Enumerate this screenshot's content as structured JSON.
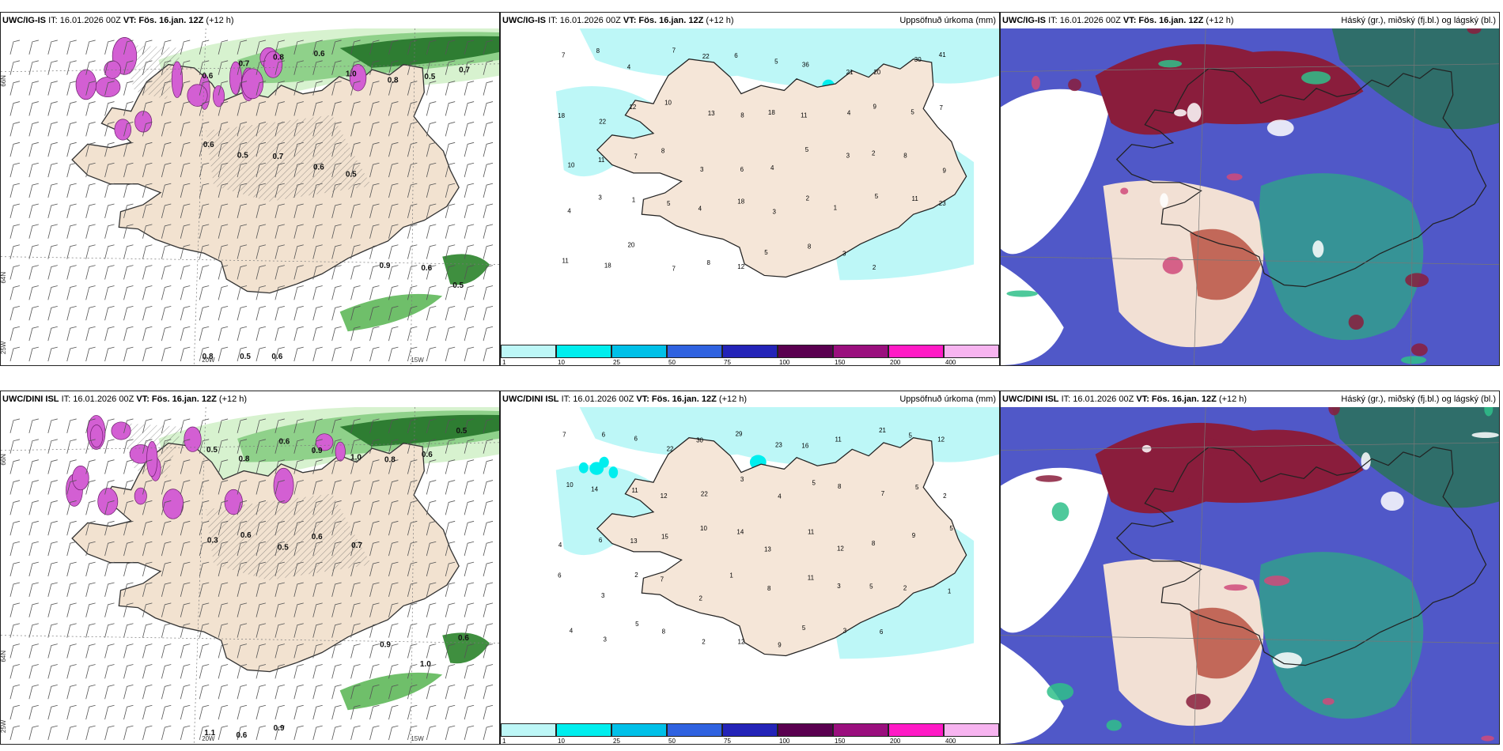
{
  "panels": {
    "p1": {
      "model": "UWC/IG-IS",
      "it": "IT: 16.01.2026 00Z",
      "vt": "VT: Fös. 16.jan. 12Z",
      "lead": "(+12 h)",
      "right": ""
    },
    "p2": {
      "model": "UWC/IG-IS",
      "it": "IT: 16.01.2026 00Z",
      "vt": "VT: Fös. 16.jan. 12Z",
      "lead": "(+12 h)",
      "right": "Uppsöfnuð úrkoma (mm)"
    },
    "p3": {
      "model": "UWC/IG-IS",
      "it": "IT: 16.01.2026 00Z",
      "vt": "VT: Fös. 16.jan. 12Z",
      "lead": "(+12 h)",
      "right": "Háský (gr.), miðský (fj.bl.) og lágský (bl.)"
    },
    "p4": {
      "model": "UWC/DINI ISL",
      "it": "IT: 16.01.2026 00Z",
      "vt": "VT: Fös. 16.jan. 12Z",
      "lead": "(+12 h)",
      "right": ""
    },
    "p5": {
      "model": "UWC/DINI ISL",
      "it": "IT: 16.01.2026 00Z",
      "vt": "VT: Fös. 16.jan. 12Z",
      "lead": "(+12 h)",
      "right": "Uppsöfnuð úrkoma (mm)"
    },
    "p6": {
      "model": "UWC/DINI ISL",
      "it": "IT: 16.01.2026 00Z",
      "vt": "VT: Fös. 16.jan. 12Z",
      "lead": "(+12 h)",
      "right": "Háský (gr.), miðský (fj.bl.) og lágský (bl.)"
    }
  },
  "grid_labels": {
    "lat66": "66N",
    "lat64": "64N",
    "lon25": "25W",
    "lon20": "20W",
    "lon15": "15W"
  },
  "colorbar": {
    "ticks": [
      "1",
      "10",
      "25",
      "50",
      "75",
      "100",
      "150",
      "200",
      "400"
    ],
    "colors": [
      "#bdf7f7",
      "#00eeee",
      "#00c0e8",
      "#2f62e0",
      "#2424b8",
      "#5a0050",
      "#9a0f7e",
      "#ff1ac6",
      "#f7b4f0"
    ]
  },
  "wind_values": {
    "top": [
      "0.6",
      "0.7",
      "0.8",
      "0.6",
      "1.0",
      "0.8",
      "0.5",
      "0.7",
      "0.6",
      "0.5",
      "0.7",
      "0.6",
      "0.5",
      "0.9",
      "0.6",
      "0.5",
      "0.8",
      "0.5",
      "0.6"
    ],
    "bottom": [
      "0.5",
      "0.8",
      "0.6",
      "0.9",
      "1.0",
      "0.8",
      "0.6",
      "0.5",
      "0.3",
      "0.6",
      "0.5",
      "0.6",
      "0.7",
      "0.9",
      "1.0",
      "0.6",
      "1.1",
      "0.6",
      "0.9"
    ]
  },
  "precip_values": {
    "top": [
      "7",
      "8",
      "4",
      "7",
      "22",
      "6",
      "5",
      "36",
      "21",
      "20",
      "30",
      "41",
      "18",
      "22",
      "12",
      "10",
      "13",
      "8",
      "18",
      "11",
      "4",
      "9",
      "5",
      "7",
      "10",
      "11",
      "7",
      "8",
      "3",
      "6",
      "4",
      "5",
      "3",
      "2",
      "8",
      "9",
      "4",
      "3",
      "1",
      "5",
      "4",
      "18",
      "3",
      "2",
      "1",
      "5",
      "11",
      "23",
      "11",
      "18",
      "20",
      "7",
      "8",
      "12",
      "5",
      "8",
      "3",
      "2"
    ],
    "bottom": [
      "7",
      "6",
      "6",
      "22",
      "30",
      "29",
      "23",
      "16",
      "11",
      "21",
      "5",
      "12",
      "10",
      "14",
      "11",
      "12",
      "22",
      "3",
      "4",
      "5",
      "8",
      "7",
      "5",
      "2",
      "4",
      "6",
      "13",
      "15",
      "10",
      "14",
      "13",
      "11",
      "12",
      "8",
      "9",
      "5",
      "6",
      "3",
      "2",
      "7",
      "2",
      "1",
      "8",
      "11",
      "3",
      "5",
      "2",
      "1",
      "4",
      "3",
      "5",
      "8",
      "2",
      "12",
      "9",
      "5",
      "3",
      "6"
    ]
  }
}
